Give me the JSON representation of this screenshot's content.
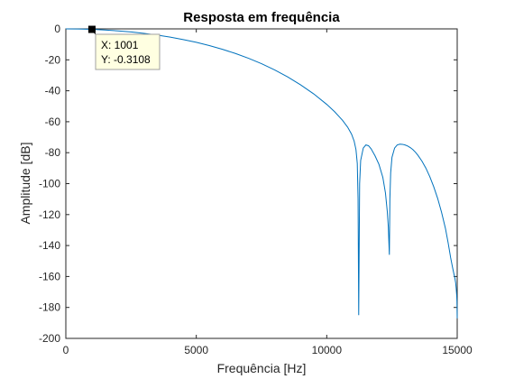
{
  "chart_data": {
    "type": "line",
    "title": "Resposta em frequência",
    "xlabel": "Frequência [Hz]",
    "ylabel": "Amplitude [dB]",
    "xlim": [
      0,
      15000
    ],
    "ylim": [
      -200,
      0
    ],
    "xticks": [
      0,
      5000,
      10000,
      15000
    ],
    "yticks": [
      0,
      -20,
      -40,
      -60,
      -80,
      -100,
      -120,
      -140,
      -160,
      -180,
      -200
    ],
    "grid": false,
    "series_color": "#0072bd",
    "series": [
      {
        "x": [
          0,
          500,
          1001,
          1500,
          2000,
          2500,
          3000,
          3500,
          4000,
          4500,
          5000,
          5500,
          6000,
          6500,
          7000,
          7500,
          8000,
          8500,
          9000,
          9500,
          10000,
          10300,
          10600,
          10800,
          10950,
          11050,
          11120,
          11170,
          11200,
          11225,
          11260,
          11300,
          11400,
          11500,
          11600,
          11700,
          11850,
          12000,
          12150,
          12250,
          12320,
          12360,
          12380,
          12400,
          12420,
          12450,
          12500,
          12600,
          12700,
          12800,
          12900,
          13000,
          13100,
          13200,
          13300,
          13400,
          13500,
          13650,
          13800,
          13950,
          14100,
          14250,
          14400,
          14550,
          14650,
          14750,
          14820,
          14870,
          14910,
          14940,
          14960,
          14980,
          14990,
          15000
        ],
        "y": [
          0,
          -0.08,
          -0.3108,
          -0.7,
          -1.3,
          -2.0,
          -2.9,
          -4.0,
          -5.3,
          -6.9,
          -8.7,
          -10.8,
          -13.2,
          -15.9,
          -19.0,
          -22.5,
          -26.5,
          -31.0,
          -36.2,
          -42.0,
          -48.8,
          -53.5,
          -59.0,
          -63.5,
          -68.0,
          -72.5,
          -78.0,
          -87.0,
          -110.0,
          -185.0,
          -100.0,
          -85.0,
          -77.0,
          -75.0,
          -75.5,
          -77.5,
          -82.0,
          -87.5,
          -96.0,
          -106.0,
          -118.0,
          -128.0,
          -137.0,
          -146.0,
          -110.0,
          -93.0,
          -83.0,
          -77.0,
          -75.0,
          -74.5,
          -74.6,
          -75.0,
          -75.7,
          -76.7,
          -78.0,
          -79.7,
          -81.8,
          -85.5,
          -90.0,
          -95.5,
          -102.0,
          -109.5,
          -118.5,
          -129.0,
          -138.0,
          -148.0,
          -154.0,
          -158.0,
          -161.0,
          -164.0,
          -167.5,
          -172.0,
          -176.0,
          -187.0
        ]
      }
    ],
    "datatip": {
      "x_text": "X: 1001",
      "y_text": "Y: -0.3108",
      "x": 1001,
      "y": -0.3108
    }
  }
}
